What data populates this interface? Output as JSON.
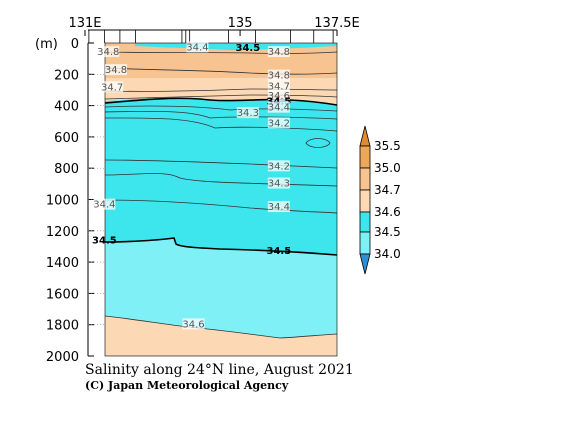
{
  "chart_data": {
    "type": "heatmap",
    "title": "Salinity along 24°N line, August 2021",
    "credit": "(C) Japan Meteorological Agency",
    "x_tick_labels": [
      "131E",
      "135",
      "137.5E"
    ],
    "x_ticks": [
      131,
      135,
      137.5
    ],
    "x_range": [
      131,
      137.5
    ],
    "y_unit": "(m)",
    "y_ticks": [
      0,
      200,
      400,
      600,
      800,
      1000,
      1200,
      1400,
      1600,
      1800,
      2000
    ],
    "y_range": [
      0,
      2000
    ],
    "station_marks": [
      131.1,
      131.5,
      131.9,
      132.3,
      133.5,
      133.6,
      133.7,
      134.7,
      135.4,
      136.3,
      136.9,
      137.4
    ],
    "colorbar": {
      "levels": [
        "35.5",
        "35.0",
        "34.7",
        "34.6",
        "34.5",
        "34.0"
      ],
      "colors": [
        "#e08c2e",
        "#eba85a",
        "#f7c391",
        "#fcd9b4",
        "#3de6ed",
        "#7ff0f6",
        "#2e8fd9"
      ]
    },
    "regions": [
      {
        "salinity": "34.5-34.6",
        "depth_m": [
          0,
          15
        ],
        "color": "#3de6ed"
      },
      {
        "salinity": "34.7-35.0",
        "depth_m": [
          30,
          250
        ],
        "color": "#f7c391"
      },
      {
        "salinity": "34.6-34.7",
        "depth_m": [
          250,
          360
        ],
        "color": "#fcd9b4"
      },
      {
        "salinity": "34.5-34.6",
        "depth_m": [
          360,
          1280
        ],
        "color": "#3de6ed"
      },
      {
        "salinity": "34.0-34.5",
        "depth_m": [
          1280,
          1800
        ],
        "color": "#7ff0f6"
      },
      {
        "salinity": "34.6-34.7",
        "depth_m": [
          1800,
          2000
        ],
        "color": "#fcd9b4"
      }
    ],
    "contour_labels": [
      {
        "text": "34.4",
        "lon": 133.9,
        "depth": 25
      },
      {
        "text": "34.5",
        "lon": 135.2,
        "depth": 30,
        "bold": true
      },
      {
        "text": "34.8",
        "lon": 131.6,
        "depth": 55
      },
      {
        "text": "34.8",
        "lon": 136.0,
        "depth": 55
      },
      {
        "text": "34.8",
        "lon": 131.8,
        "depth": 170
      },
      {
        "text": "34.8",
        "lon": 136.0,
        "depth": 205
      },
      {
        "text": "34.7",
        "lon": 131.7,
        "depth": 280
      },
      {
        "text": "34.7",
        "lon": 136.0,
        "depth": 275
      },
      {
        "text": "34.6",
        "lon": 136.0,
        "depth": 335
      },
      {
        "text": "34.5",
        "lon": 136.0,
        "depth": 370,
        "bold": true
      },
      {
        "text": "34.4",
        "lon": 136.0,
        "depth": 410
      },
      {
        "text": "34.3",
        "lon": 135.2,
        "depth": 445
      },
      {
        "text": "34.2",
        "lon": 136.0,
        "depth": 510
      },
      {
        "text": "34.2",
        "lon": 136.0,
        "depth": 785
      },
      {
        "text": "34.3",
        "lon": 136.0,
        "depth": 895
      },
      {
        "text": "34.4",
        "lon": 131.5,
        "depth": 1030
      },
      {
        "text": "34.4",
        "lon": 136.0,
        "depth": 1045
      },
      {
        "text": "34.5",
        "lon": 131.5,
        "depth": 1260,
        "bold": true
      },
      {
        "text": "34.5",
        "lon": 136.0,
        "depth": 1325,
        "bold": true
      },
      {
        "text": "34.6",
        "lon": 133.8,
        "depth": 1795
      }
    ]
  }
}
